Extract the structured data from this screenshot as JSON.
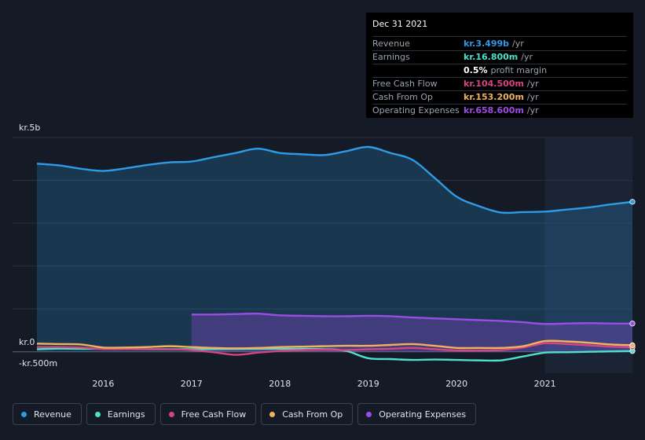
{
  "chart_data": {
    "type": "area",
    "y_axis_labels": {
      "top": "kr.5b",
      "zero": "kr.0",
      "bottom": "-kr.500m"
    },
    "ylim": [
      -500,
      5000
    ],
    "xlim": [
      2015.25,
      2021.99
    ],
    "x_ticks": [
      "2016",
      "2017",
      "2018",
      "2019",
      "2020",
      "2021"
    ],
    "x_tick_values": [
      2016,
      2017,
      2018,
      2019,
      2020,
      2021
    ],
    "highlight_start": 2021.0,
    "series": [
      {
        "name": "Revenue",
        "color": "#2f9be6",
        "fill": true,
        "points": [
          [
            2015.25,
            4390
          ],
          [
            2015.5,
            4350
          ],
          [
            2015.75,
            4270
          ],
          [
            2016.0,
            4220
          ],
          [
            2016.25,
            4280
          ],
          [
            2016.5,
            4360
          ],
          [
            2016.75,
            4420
          ],
          [
            2017.0,
            4440
          ],
          [
            2017.25,
            4540
          ],
          [
            2017.5,
            4640
          ],
          [
            2017.75,
            4740
          ],
          [
            2018.0,
            4640
          ],
          [
            2018.25,
            4610
          ],
          [
            2018.5,
            4590
          ],
          [
            2018.75,
            4680
          ],
          [
            2019.0,
            4780
          ],
          [
            2019.25,
            4640
          ],
          [
            2019.5,
            4480
          ],
          [
            2019.75,
            4060
          ],
          [
            2020.0,
            3620
          ],
          [
            2020.25,
            3400
          ],
          [
            2020.5,
            3250
          ],
          [
            2020.75,
            3260
          ],
          [
            2021.0,
            3270
          ],
          [
            2021.25,
            3320
          ],
          [
            2021.5,
            3370
          ],
          [
            2021.75,
            3440
          ],
          [
            2021.99,
            3499
          ]
        ]
      },
      {
        "name": "Earnings",
        "color": "#4fe0cc",
        "fill": false,
        "points": [
          [
            2015.25,
            60
          ],
          [
            2015.5,
            75
          ],
          [
            2015.75,
            70
          ],
          [
            2016.0,
            70
          ],
          [
            2016.5,
            60
          ],
          [
            2017.0,
            60
          ],
          [
            2017.5,
            65
          ],
          [
            2018.0,
            70
          ],
          [
            2018.5,
            60
          ],
          [
            2018.75,
            20
          ],
          [
            2019.0,
            -150
          ],
          [
            2019.25,
            -170
          ],
          [
            2019.5,
            -190
          ],
          [
            2019.75,
            -180
          ],
          [
            2020.0,
            -190
          ],
          [
            2020.25,
            -200
          ],
          [
            2020.5,
            -200
          ],
          [
            2020.75,
            -110
          ],
          [
            2021.0,
            -20
          ],
          [
            2021.25,
            -10
          ],
          [
            2021.5,
            0
          ],
          [
            2021.75,
            10
          ],
          [
            2021.99,
            17
          ]
        ]
      },
      {
        "name": "Free Cash Flow",
        "color": "#d6457d",
        "fill": false,
        "points": [
          [
            2015.25,
            110
          ],
          [
            2015.5,
            110
          ],
          [
            2015.75,
            100
          ],
          [
            2016.0,
            60
          ],
          [
            2016.25,
            60
          ],
          [
            2016.5,
            60
          ],
          [
            2016.75,
            60
          ],
          [
            2017.0,
            40
          ],
          [
            2017.25,
            -10
          ],
          [
            2017.5,
            -70
          ],
          [
            2017.75,
            -20
          ],
          [
            2018.0,
            20
          ],
          [
            2018.25,
            40
          ],
          [
            2018.5,
            50
          ],
          [
            2018.75,
            40
          ],
          [
            2019.0,
            60
          ],
          [
            2019.25,
            70
          ],
          [
            2019.5,
            90
          ],
          [
            2019.75,
            60
          ],
          [
            2020.0,
            30
          ],
          [
            2020.25,
            30
          ],
          [
            2020.5,
            40
          ],
          [
            2020.75,
            100
          ],
          [
            2021.0,
            200
          ],
          [
            2021.25,
            180
          ],
          [
            2021.5,
            150
          ],
          [
            2021.75,
            120
          ],
          [
            2021.99,
            105
          ]
        ]
      },
      {
        "name": "Cash From Op",
        "color": "#f1b25d",
        "fill": false,
        "points": [
          [
            2015.25,
            190
          ],
          [
            2015.5,
            180
          ],
          [
            2015.75,
            170
          ],
          [
            2016.0,
            100
          ],
          [
            2016.25,
            100
          ],
          [
            2016.5,
            110
          ],
          [
            2016.75,
            130
          ],
          [
            2017.0,
            110
          ],
          [
            2017.25,
            90
          ],
          [
            2017.5,
            80
          ],
          [
            2017.75,
            90
          ],
          [
            2018.0,
            110
          ],
          [
            2018.25,
            120
          ],
          [
            2018.5,
            130
          ],
          [
            2018.75,
            140
          ],
          [
            2019.0,
            140
          ],
          [
            2019.25,
            160
          ],
          [
            2019.5,
            180
          ],
          [
            2019.75,
            140
          ],
          [
            2020.0,
            90
          ],
          [
            2020.25,
            90
          ],
          [
            2020.5,
            90
          ],
          [
            2020.75,
            130
          ],
          [
            2021.0,
            250
          ],
          [
            2021.25,
            240
          ],
          [
            2021.5,
            210
          ],
          [
            2021.75,
            170
          ],
          [
            2021.99,
            153
          ]
        ]
      },
      {
        "name": "Operating Expenses",
        "color": "#9a4de4",
        "fill": true,
        "points": [
          [
            2017.0,
            870
          ],
          [
            2017.25,
            870
          ],
          [
            2017.5,
            880
          ],
          [
            2017.75,
            890
          ],
          [
            2018.0,
            850
          ],
          [
            2018.25,
            840
          ],
          [
            2018.5,
            830
          ],
          [
            2018.75,
            830
          ],
          [
            2019.0,
            840
          ],
          [
            2019.25,
            830
          ],
          [
            2019.5,
            800
          ],
          [
            2019.75,
            780
          ],
          [
            2020.0,
            760
          ],
          [
            2020.25,
            740
          ],
          [
            2020.5,
            720
          ],
          [
            2020.75,
            690
          ],
          [
            2021.0,
            650
          ],
          [
            2021.25,
            660
          ],
          [
            2021.5,
            670
          ],
          [
            2021.75,
            660
          ],
          [
            2021.99,
            659
          ]
        ]
      }
    ]
  },
  "tooltip": {
    "date": "Dec 31 2021",
    "rows": [
      {
        "label": "Revenue",
        "value": "kr.3.499b",
        "unit": "/yr",
        "color": "#2f9be6"
      },
      {
        "label": "Earnings",
        "value": "kr.16.800m",
        "unit": "/yr",
        "color": "#4fe0cc"
      },
      {
        "label": "",
        "value": "0.5%",
        "unit": "profit margin",
        "color": "#ffffff"
      },
      {
        "label": "Free Cash Flow",
        "value": "kr.104.500m",
        "unit": "/yr",
        "color": "#d6457d"
      },
      {
        "label": "Cash From Op",
        "value": "kr.153.200m",
        "unit": "/yr",
        "color": "#f1b25d"
      },
      {
        "label": "Operating Expenses",
        "value": "kr.658.600m",
        "unit": "/yr",
        "color": "#9a4de4"
      }
    ]
  },
  "legend": [
    {
      "label": "Revenue",
      "color": "#2f9be6"
    },
    {
      "label": "Earnings",
      "color": "#4fe0cc"
    },
    {
      "label": "Free Cash Flow",
      "color": "#d6457d"
    },
    {
      "label": "Cash From Op",
      "color": "#f1b25d"
    },
    {
      "label": "Operating Expenses",
      "color": "#9a4de4"
    }
  ]
}
